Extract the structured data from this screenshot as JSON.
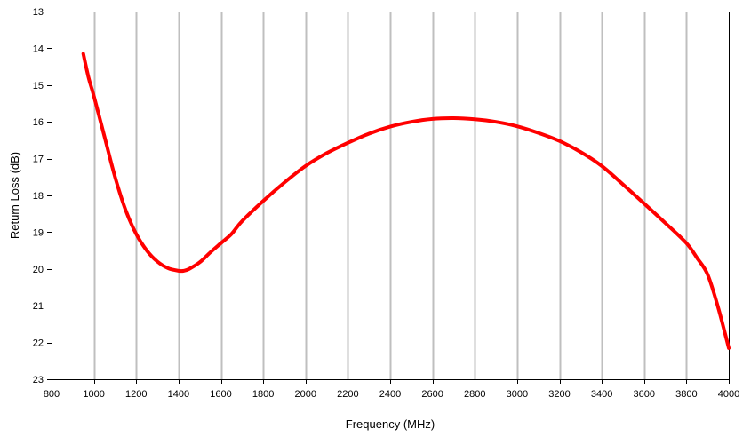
{
  "chart_data": {
    "type": "line",
    "xlabel": "Frequency (MHz)",
    "ylabel": "Return Loss (dB)",
    "xlim": [
      800,
      4000
    ],
    "ylim": [
      13,
      23
    ],
    "y_inverted": true,
    "x_ticks": [
      800,
      1000,
      1200,
      1400,
      1600,
      1800,
      2000,
      2200,
      2400,
      2600,
      2800,
      3000,
      3200,
      3400,
      3600,
      3800,
      4000
    ],
    "y_ticks": [
      13,
      14,
      15,
      16,
      17,
      18,
      19,
      20,
      21,
      22,
      23
    ],
    "grid": {
      "vertical": true,
      "horizontal": false
    },
    "colors": {
      "line": "#ff0000",
      "grid": "#bfbfbf",
      "axis": "#000000"
    },
    "series": [
      {
        "x": [
          950,
          975,
          1000,
          1050,
          1100,
          1150,
          1200,
          1250,
          1300,
          1350,
          1400,
          1425,
          1450,
          1500,
          1550,
          1600,
          1650,
          1700,
          1800,
          1900,
          2000,
          2100,
          2200,
          2300,
          2400,
          2500,
          2600,
          2700,
          2800,
          2900,
          3000,
          3100,
          3200,
          3300,
          3400,
          3500,
          3600,
          3700,
          3800,
          3850,
          3900,
          3950,
          4000
        ],
        "y": [
          14.15,
          14.8,
          15.3,
          16.4,
          17.5,
          18.4,
          19.05,
          19.5,
          19.8,
          19.98,
          20.05,
          20.05,
          20.0,
          19.82,
          19.55,
          19.3,
          19.05,
          18.7,
          18.15,
          17.65,
          17.2,
          16.85,
          16.57,
          16.32,
          16.13,
          16.0,
          15.92,
          15.9,
          15.93,
          16.0,
          16.12,
          16.3,
          16.52,
          16.82,
          17.2,
          17.7,
          18.22,
          18.75,
          19.3,
          19.7,
          20.15,
          21.05,
          22.15
        ]
      }
    ]
  }
}
